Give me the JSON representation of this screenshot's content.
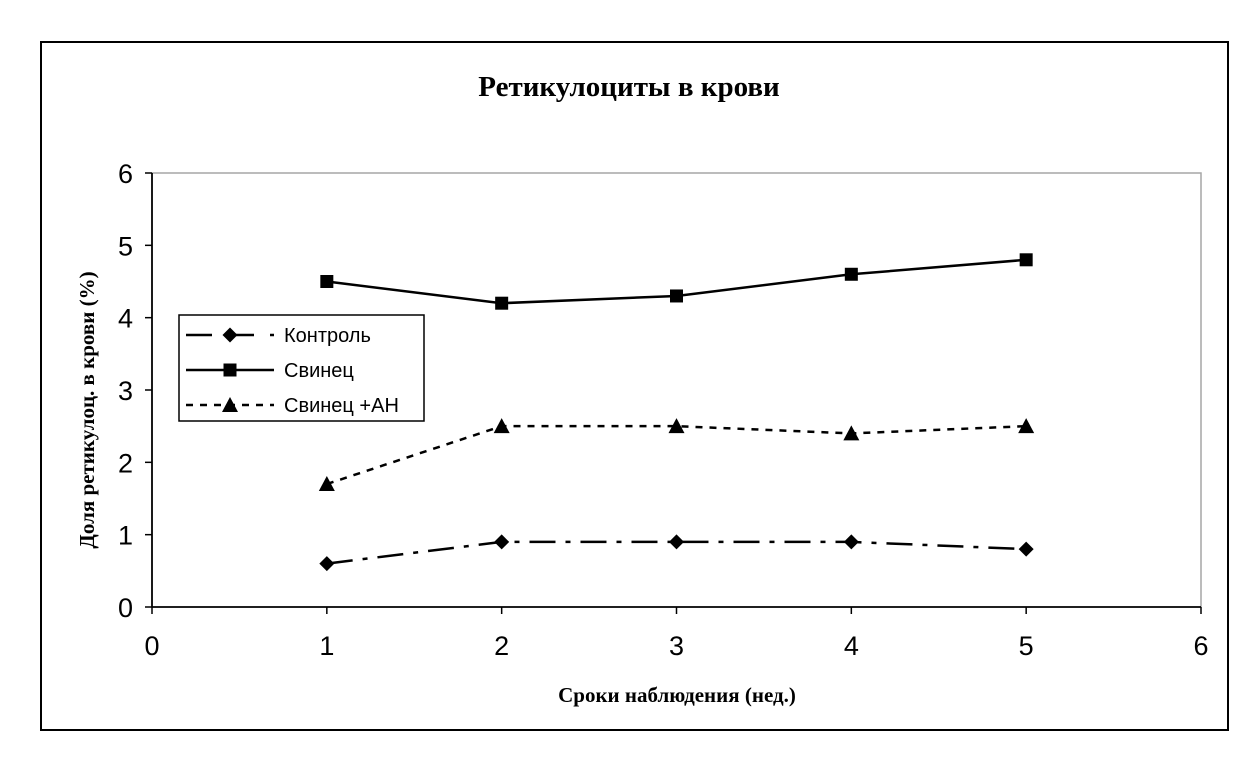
{
  "chart_data": {
    "type": "line",
    "title": "Ретикулоциты в крови",
    "xlabel": "Сроки наблюдения (нед.)",
    "ylabel": "Доля ретикулоц. в крови (%)",
    "xlim": [
      0,
      6
    ],
    "ylim": [
      0,
      6
    ],
    "xticks": [
      "0",
      "1",
      "2",
      "3",
      "4",
      "5",
      "6"
    ],
    "yticks": [
      "0",
      "1",
      "2",
      "3",
      "4",
      "5",
      "6"
    ],
    "grid": false,
    "legend_position": "left",
    "x": [
      1,
      2,
      3,
      4,
      5
    ],
    "series": [
      {
        "name": "Контроль",
        "values": [
          0.6,
          0.9,
          0.9,
          0.9,
          0.8
        ],
        "marker": "diamond",
        "line_style": "dash-dot",
        "color": "#000000"
      },
      {
        "name": "Свинец",
        "values": [
          4.5,
          4.2,
          4.3,
          4.6,
          4.8
        ],
        "marker": "square",
        "line_style": "solid",
        "color": "#000000"
      },
      {
        "name": "Свинец +АН",
        "values": [
          1.7,
          2.5,
          2.5,
          2.4,
          2.5
        ],
        "marker": "triangle",
        "line_style": "dotted",
        "color": "#000000"
      }
    ]
  }
}
